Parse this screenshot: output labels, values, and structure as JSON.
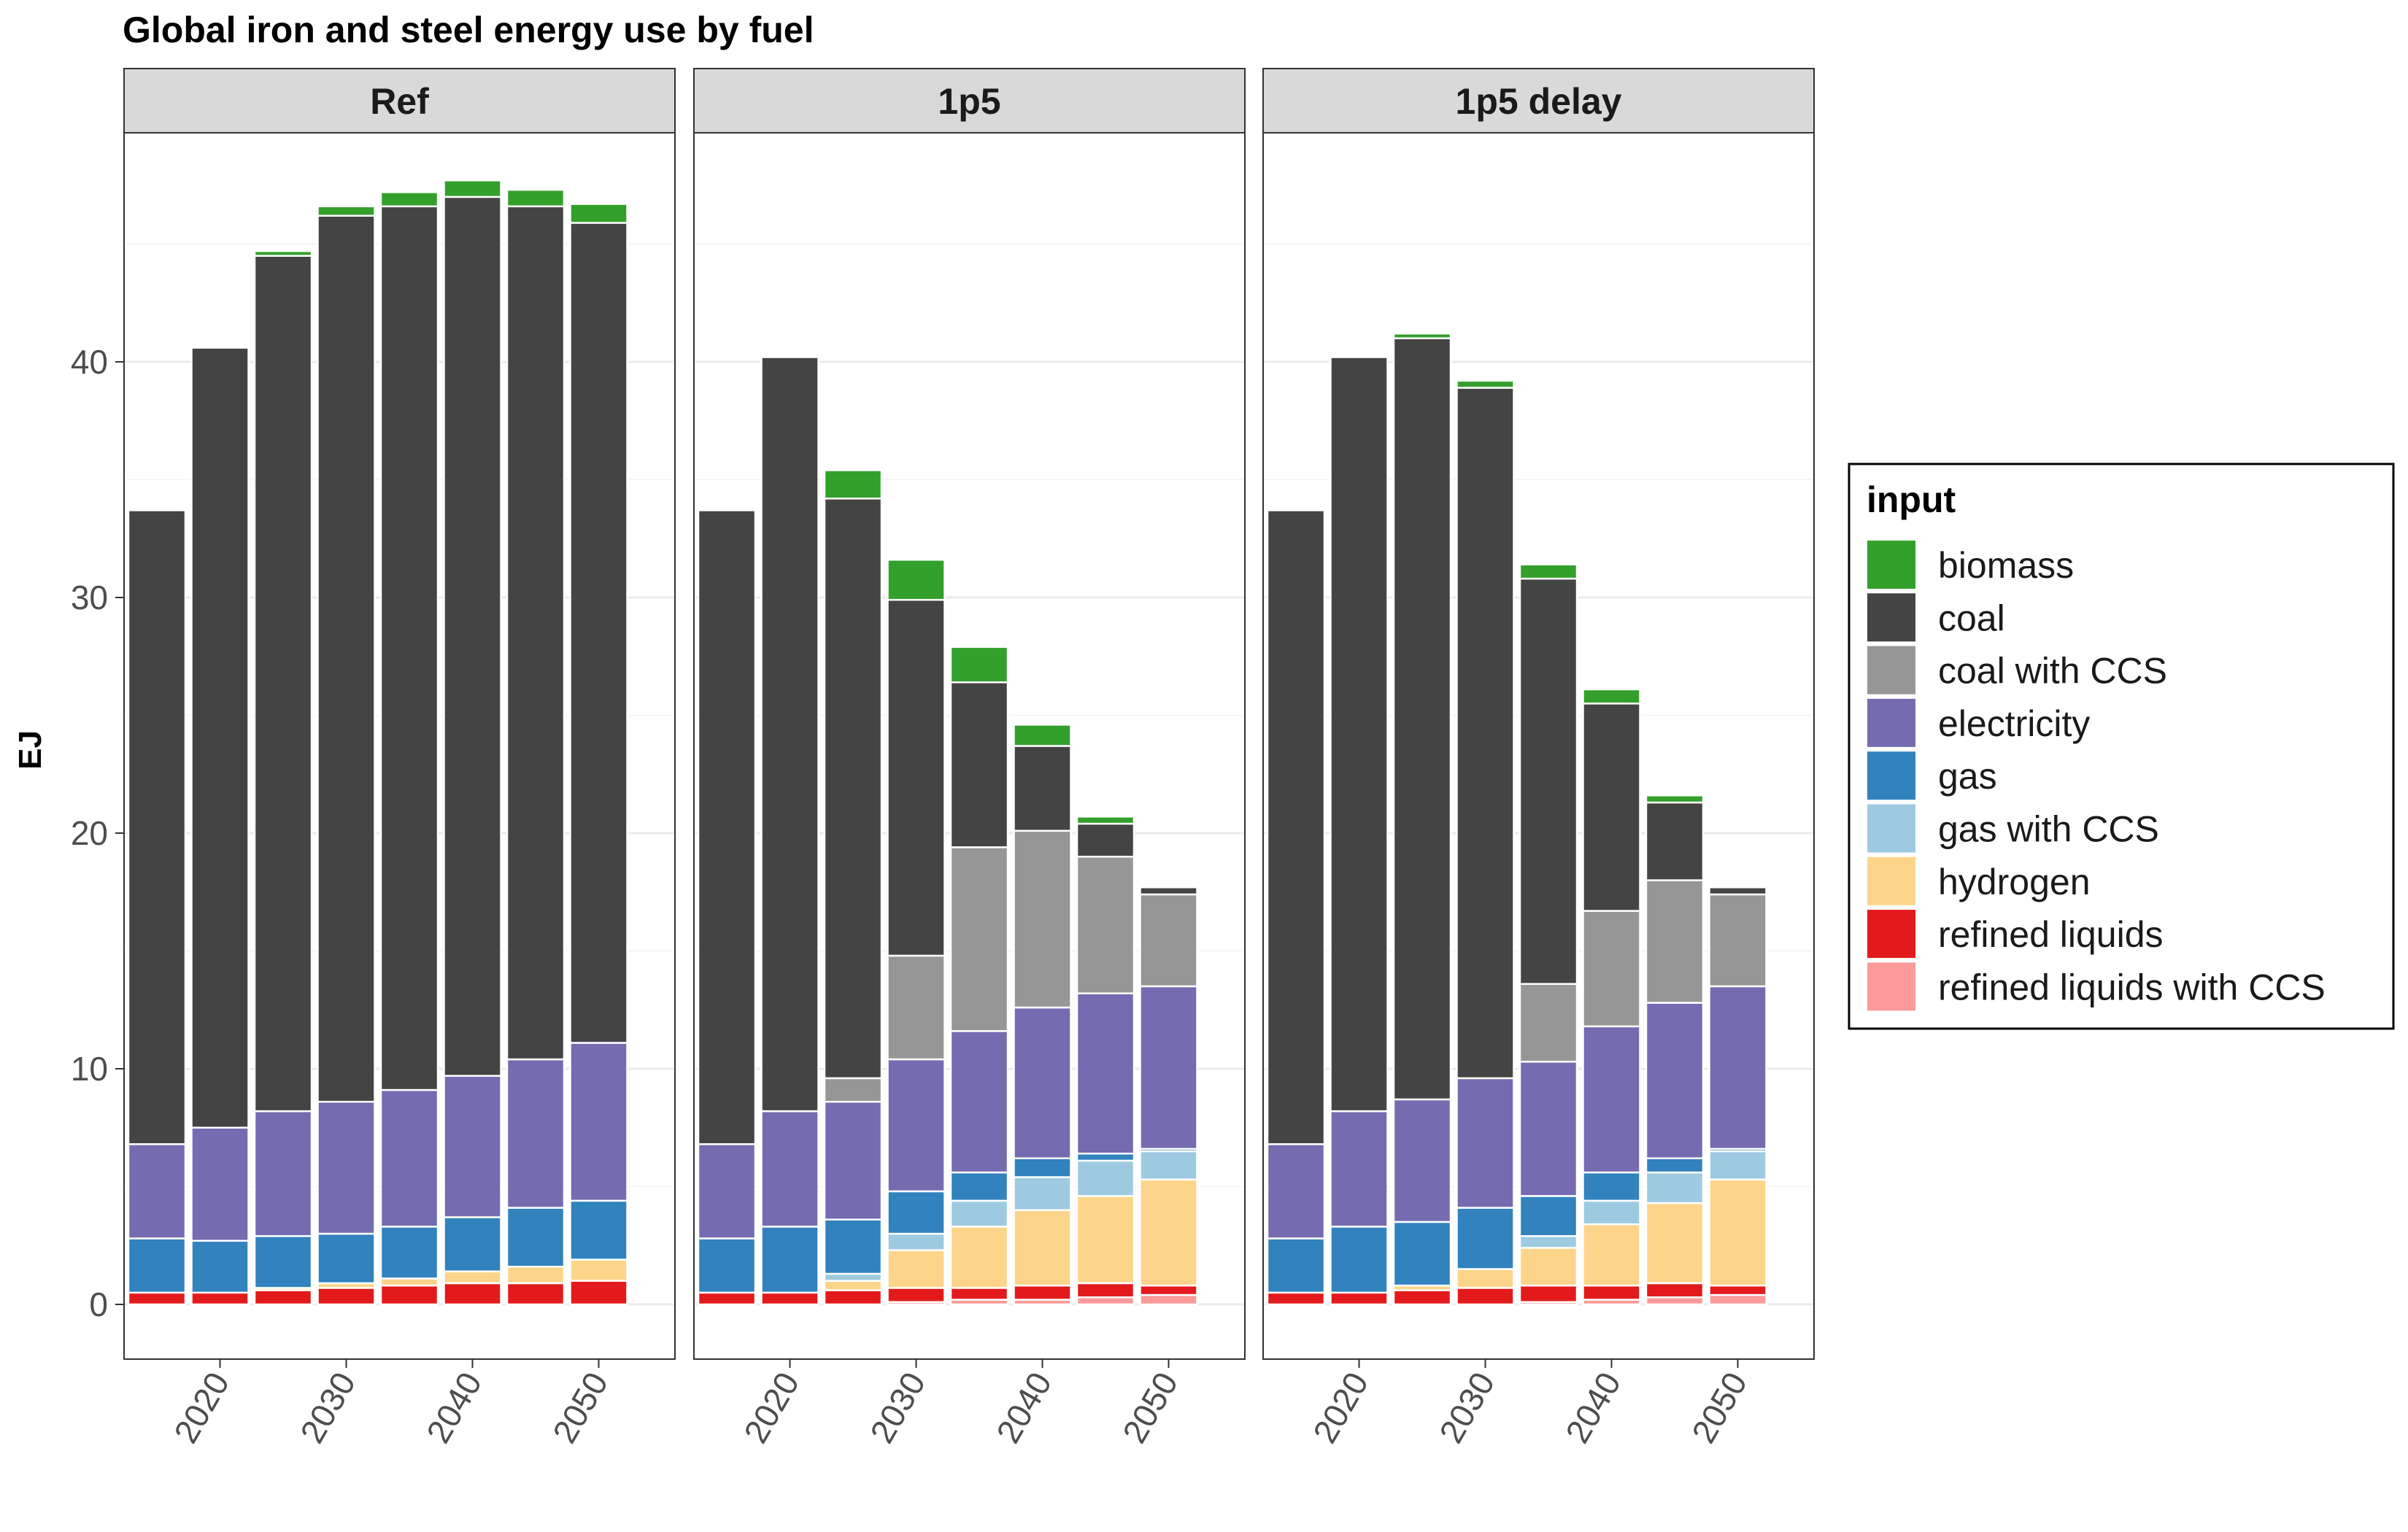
{
  "chart_data": {
    "type": "bar",
    "stacked": true,
    "title": "Global iron and steel energy use by fuel",
    "ylabel": "EJ",
    "xlabel": "",
    "ylim": [
      0,
      50
    ],
    "yticks": [
      0,
      10,
      20,
      30,
      40
    ],
    "xticks": [
      2020,
      2030,
      2040,
      2050
    ],
    "grid": true,
    "legend_title": "input",
    "legend_position": "right",
    "x": [
      2015,
      2020,
      2025,
      2030,
      2035,
      2040,
      2045,
      2050
    ],
    "fuels": [
      {
        "name": "biomass",
        "color": "#33a02c"
      },
      {
        "name": "coal",
        "color": "#444444"
      },
      {
        "name": "coal with CCS",
        "color": "#969696"
      },
      {
        "name": "electricity",
        "color": "#756bb1"
      },
      {
        "name": "gas",
        "color": "#3182bd"
      },
      {
        "name": "gas with CCS",
        "color": "#9ecae1"
      },
      {
        "name": "hydrogen",
        "color": "#fdd58a"
      },
      {
        "name": "refined liquids",
        "color": "#e31a1c"
      },
      {
        "name": "refined liquids with CCS",
        "color": "#fb9a99"
      }
    ],
    "panels": [
      {
        "name": "Ref",
        "series": [
          {
            "name": "refined liquids with CCS",
            "values": [
              0,
              0,
              0,
              0,
              0,
              0,
              0,
              0
            ]
          },
          {
            "name": "refined liquids",
            "values": [
              0.5,
              0.5,
              0.6,
              0.7,
              0.8,
              0.9,
              0.9,
              1.0
            ]
          },
          {
            "name": "hydrogen",
            "values": [
              0,
              0,
              0.1,
              0.2,
              0.3,
              0.5,
              0.7,
              0.9
            ]
          },
          {
            "name": "gas with CCS",
            "values": [
              0,
              0,
              0,
              0,
              0,
              0,
              0,
              0
            ]
          },
          {
            "name": "gas",
            "values": [
              2.3,
              2.2,
              2.2,
              2.1,
              2.2,
              2.3,
              2.5,
              2.5
            ]
          },
          {
            "name": "electricity",
            "values": [
              4.0,
              4.8,
              5.3,
              5.6,
              5.8,
              6.0,
              6.3,
              6.7
            ]
          },
          {
            "name": "coal with CCS",
            "values": [
              0,
              0,
              0,
              0,
              0,
              0,
              0,
              0
            ]
          },
          {
            "name": "coal",
            "values": [
              26.9,
              33.1,
              36.3,
              37.6,
              37.5,
              37.3,
              36.2,
              34.8
            ]
          },
          {
            "name": "biomass",
            "values": [
              0,
              0,
              0.2,
              0.4,
              0.6,
              0.7,
              0.7,
              0.8
            ]
          }
        ]
      },
      {
        "name": "1p5",
        "series": [
          {
            "name": "refined liquids with CCS",
            "values": [
              0,
              0,
              0,
              0.1,
              0.2,
              0.2,
              0.3,
              0.4
            ]
          },
          {
            "name": "refined liquids",
            "values": [
              0.5,
              0.5,
              0.6,
              0.6,
              0.5,
              0.6,
              0.6,
              0.4
            ]
          },
          {
            "name": "hydrogen",
            "values": [
              0,
              0,
              0.4,
              1.6,
              2.6,
              3.2,
              3.7,
              4.5
            ]
          },
          {
            "name": "gas with CCS",
            "values": [
              0,
              0,
              0.3,
              0.7,
              1.1,
              1.4,
              1.5,
              1.2
            ]
          },
          {
            "name": "gas",
            "values": [
              2.3,
              2.8,
              2.3,
              1.8,
              1.2,
              0.8,
              0.3,
              0.1
            ]
          },
          {
            "name": "electricity",
            "values": [
              4.0,
              4.9,
              5.0,
              5.6,
              6.0,
              6.4,
              6.8,
              6.9
            ]
          },
          {
            "name": "coal with CCS",
            "values": [
              0,
              0,
              1.0,
              4.4,
              7.8,
              7.5,
              5.8,
              3.9
            ]
          },
          {
            "name": "coal",
            "values": [
              26.9,
              32.0,
              24.6,
              15.1,
              7.0,
              3.6,
              1.4,
              0.3
            ]
          },
          {
            "name": "biomass",
            "values": [
              0,
              0,
              1.2,
              1.7,
              1.5,
              0.9,
              0.3,
              0
            ]
          }
        ]
      },
      {
        "name": "1p5 delay",
        "series": [
          {
            "name": "refined liquids with CCS",
            "values": [
              0,
              0,
              0,
              0,
              0.1,
              0.2,
              0.3,
              0.4
            ]
          },
          {
            "name": "refined liquids",
            "values": [
              0.5,
              0.5,
              0.6,
              0.7,
              0.7,
              0.6,
              0.6,
              0.4
            ]
          },
          {
            "name": "hydrogen",
            "values": [
              0,
              0,
              0.2,
              0.8,
              1.6,
              2.6,
              3.4,
              4.5
            ]
          },
          {
            "name": "gas with CCS",
            "values": [
              0,
              0,
              0,
              0,
              0.5,
              1.0,
              1.3,
              1.2
            ]
          },
          {
            "name": "gas",
            "values": [
              2.3,
              2.8,
              2.7,
              2.6,
              1.7,
              1.2,
              0.6,
              0.1
            ]
          },
          {
            "name": "electricity",
            "values": [
              4.0,
              4.9,
              5.2,
              5.5,
              5.7,
              6.2,
              6.6,
              6.9
            ]
          },
          {
            "name": "coal with CCS",
            "values": [
              0,
              0,
              0,
              0,
              3.3,
              4.9,
              5.2,
              3.9
            ]
          },
          {
            "name": "coal",
            "values": [
              26.9,
              32.0,
              32.3,
              29.3,
              17.2,
              8.8,
              3.3,
              0.3
            ]
          },
          {
            "name": "biomass",
            "values": [
              0,
              0,
              0.2,
              0.3,
              0.6,
              0.6,
              0.3,
              0
            ]
          }
        ]
      }
    ]
  }
}
